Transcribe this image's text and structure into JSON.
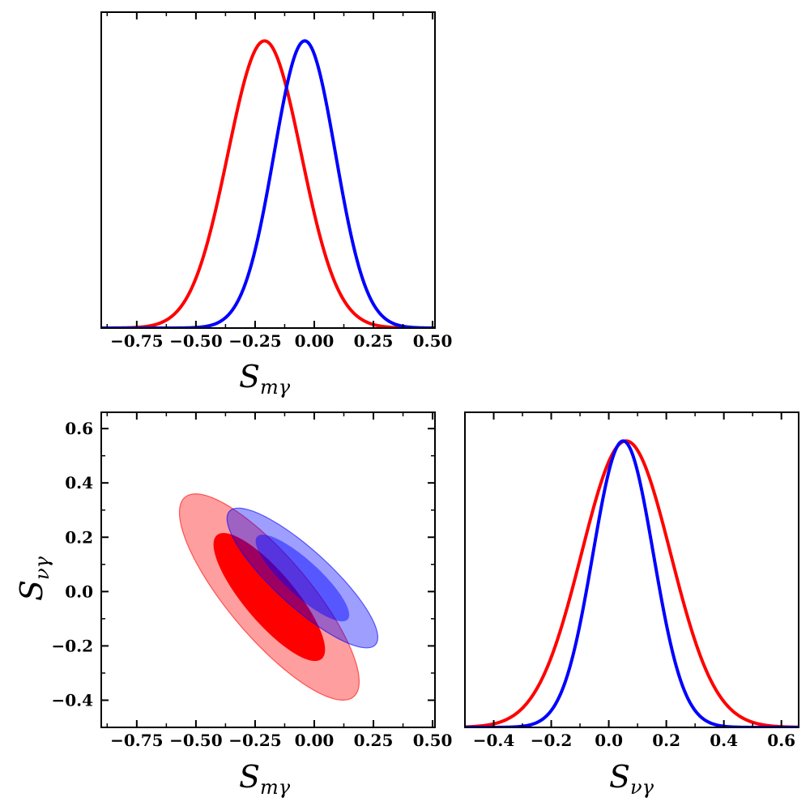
{
  "chart_data": [
    {
      "id": "marginal-s-m-gamma",
      "type": "line",
      "title": "",
      "xlabel": "S",
      "xlabel_sub": "mγ",
      "ylabel": "",
      "xlim": [
        -0.9,
        0.51
      ],
      "ylim": [
        0,
        1.0
      ],
      "x_ticks": [
        -0.75,
        -0.5,
        -0.25,
        0.0,
        0.25,
        0.5
      ],
      "x_tick_labels": [
        "−0.75",
        "−0.50",
        "−0.25",
        "0.00",
        "0.25",
        "0.50"
      ],
      "series": [
        {
          "name": "red",
          "color": "#ff0000",
          "mean": -0.21,
          "sigma": 0.155,
          "peak": 1.0
        },
        {
          "name": "blue",
          "color": "#0000ff",
          "mean": -0.04,
          "sigma": 0.13,
          "peak": 1.0
        }
      ]
    },
    {
      "id": "joint-contours",
      "type": "contour",
      "title": "",
      "xlabel": "S",
      "xlabel_sub": "mγ",
      "ylabel": "S",
      "ylabel_sub": "νγ",
      "xlim": [
        -0.9,
        0.51
      ],
      "ylim": [
        -0.5,
        0.66
      ],
      "x_ticks": [
        -0.75,
        -0.5,
        -0.25,
        0.0,
        0.25,
        0.5
      ],
      "x_tick_labels": [
        "−0.75",
        "−0.50",
        "−0.25",
        "0.00",
        "0.25",
        "0.50"
      ],
      "y_ticks": [
        -0.4,
        -0.2,
        0.0,
        0.2,
        0.4,
        0.6
      ],
      "y_tick_labels": [
        "−0.4",
        "−0.2",
        "0.0",
        "0.2",
        "0.4",
        "0.6"
      ],
      "series": [
        {
          "name": "red",
          "color": "#ff0000",
          "center": [
            -0.19,
            -0.02
          ],
          "sigma_x": 0.155,
          "sigma_y": 0.155,
          "rho": -0.82
        },
        {
          "name": "blue",
          "color": "#0000ff",
          "center": [
            -0.05,
            0.05
          ],
          "sigma_x": 0.13,
          "sigma_y": 0.105,
          "rho": -0.85
        }
      ]
    },
    {
      "id": "marginal-s-nu-gamma",
      "type": "line",
      "title": "",
      "xlabel": "S",
      "xlabel_sub": "νγ",
      "ylabel": "",
      "xlim": [
        -0.5,
        0.66
      ],
      "ylim": [
        0,
        1.0
      ],
      "x_ticks": [
        -0.4,
        -0.2,
        0.0,
        0.2,
        0.4,
        0.6
      ],
      "x_tick_labels": [
        "−0.4",
        "−0.2",
        "0.0",
        "0.2",
        "0.4",
        "0.6"
      ],
      "series": [
        {
          "name": "red",
          "color": "#ff0000",
          "mean": 0.06,
          "sigma": 0.155,
          "peak": 1.0
        },
        {
          "name": "blue",
          "color": "#0000ff",
          "mean": 0.05,
          "sigma": 0.105,
          "peak": 1.0
        }
      ]
    }
  ]
}
